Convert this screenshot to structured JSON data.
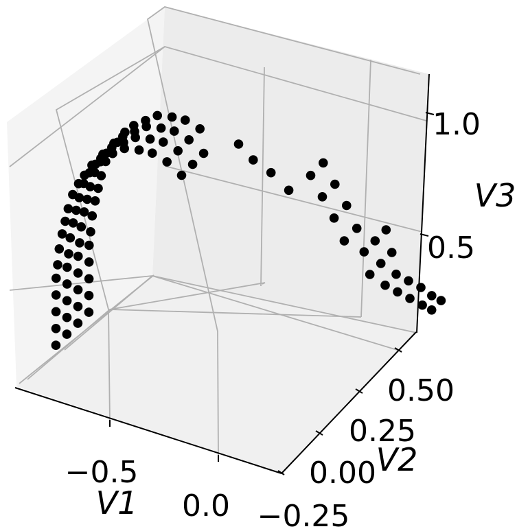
{
  "chart_data": {
    "type": "scatter",
    "xlabel": "V1",
    "ylabel": "V2",
    "zlabel": "V3",
    "x_ticks": [
      "−0.5",
      "0.0"
    ],
    "y_ticks": [
      "−0.25",
      "0.00",
      "0.25",
      "0.50"
    ],
    "z_ticks": [
      "0.5",
      "1.0"
    ],
    "grid": true,
    "marker_color": "#000000",
    "pane_color": "#f2f2f2",
    "grid_color": "#b0b0b0",
    "series": [
      {
        "points": [
          [
            -0.96,
            -0.14,
            0.02
          ],
          [
            -0.96,
            -0.14,
            0.09
          ],
          [
            -0.96,
            -0.14,
            0.16
          ],
          [
            -0.96,
            -0.14,
            0.23
          ],
          [
            -0.96,
            -0.14,
            0.3
          ],
          [
            -0.95,
            -0.14,
            0.36
          ],
          [
            -0.94,
            -0.14,
            0.43
          ],
          [
            -0.92,
            -0.14,
            0.5
          ],
          [
            -0.9,
            -0.14,
            0.56
          ],
          [
            -0.88,
            -0.14,
            0.62
          ],
          [
            -0.85,
            -0.14,
            0.69
          ],
          [
            -0.81,
            -0.14,
            0.75
          ],
          [
            -0.77,
            -0.14,
            0.8
          ],
          [
            -0.72,
            -0.14,
            0.86
          ],
          [
            -0.66,
            -0.14,
            0.91
          ],
          [
            -0.58,
            -0.14,
            0.96
          ],
          [
            -0.5,
            -0.14,
            1.01
          ],
          [
            -0.4,
            -0.14,
            1.04
          ],
          [
            -0.96,
            -0.07,
            0.02
          ],
          [
            -0.96,
            -0.07,
            0.09
          ],
          [
            -0.96,
            -0.07,
            0.16
          ],
          [
            -0.96,
            -0.07,
            0.23
          ],
          [
            -0.96,
            -0.07,
            0.3
          ],
          [
            -0.95,
            -0.07,
            0.36
          ],
          [
            -0.94,
            -0.07,
            0.43
          ],
          [
            -0.92,
            -0.07,
            0.5
          ],
          [
            -0.9,
            -0.07,
            0.56
          ],
          [
            -0.88,
            -0.07,
            0.62
          ],
          [
            -0.85,
            -0.07,
            0.69
          ],
          [
            -0.81,
            -0.07,
            0.75
          ],
          [
            -0.77,
            -0.07,
            0.8
          ],
          [
            -0.72,
            -0.07,
            0.86
          ],
          [
            -0.66,
            -0.07,
            0.91
          ],
          [
            -0.58,
            -0.07,
            0.96
          ],
          [
            -0.5,
            -0.07,
            1.01
          ],
          [
            -0.4,
            -0.07,
            1.04
          ],
          [
            -0.96,
            0.0,
            0.02
          ],
          [
            -0.96,
            0.0,
            0.09
          ],
          [
            -0.96,
            0.0,
            0.16
          ],
          [
            -0.96,
            0.0,
            0.23
          ],
          [
            -0.96,
            0.0,
            0.3
          ],
          [
            -0.95,
            0.0,
            0.36
          ],
          [
            -0.94,
            0.0,
            0.43
          ],
          [
            -0.92,
            0.0,
            0.5
          ],
          [
            -0.9,
            0.0,
            0.56
          ],
          [
            -0.88,
            0.0,
            0.62
          ],
          [
            -0.85,
            0.0,
            0.69
          ],
          [
            -0.81,
            0.0,
            0.75
          ],
          [
            -0.77,
            0.0,
            0.8
          ],
          [
            -0.72,
            0.0,
            0.86
          ],
          [
            -0.66,
            0.0,
            0.91
          ],
          [
            -0.58,
            0.0,
            0.96
          ],
          [
            -0.5,
            0.0,
            1.01
          ],
          [
            -0.4,
            0.0,
            1.04
          ],
          [
            -0.96,
            0.07,
            0.02
          ],
          [
            -0.96,
            0.07,
            0.09
          ],
          [
            -0.96,
            0.07,
            0.16
          ],
          [
            -0.96,
            0.07,
            0.23
          ],
          [
            -0.96,
            0.07,
            0.3
          ],
          [
            -0.95,
            0.07,
            0.36
          ],
          [
            -0.94,
            0.07,
            0.43
          ],
          [
            -0.92,
            0.07,
            0.5
          ],
          [
            -0.9,
            0.07,
            0.56
          ],
          [
            -0.88,
            0.07,
            0.62
          ],
          [
            -0.85,
            0.07,
            0.69
          ],
          [
            -0.81,
            0.07,
            0.75
          ],
          [
            -0.77,
            0.07,
            0.8
          ],
          [
            -0.72,
            0.07,
            0.86
          ],
          [
            -0.66,
            0.07,
            0.91
          ],
          [
            -0.58,
            0.07,
            0.96
          ],
          [
            -0.5,
            0.07,
            1.01
          ],
          [
            -0.4,
            0.07,
            1.04
          ],
          [
            -0.31,
            -0.14,
            1.06
          ],
          [
            -0.31,
            -0.07,
            1.06
          ],
          [
            -0.31,
            0.0,
            1.06
          ],
          [
            -0.31,
            0.07,
            1.06
          ],
          [
            -0.21,
            -0.14,
            1.06
          ],
          [
            -0.21,
            -0.07,
            1.06
          ],
          [
            -0.21,
            0.0,
            1.06
          ],
          [
            -0.21,
            0.07,
            1.06
          ],
          [
            -0.11,
            -0.14,
            1.04
          ],
          [
            -0.11,
            -0.07,
            1.04
          ],
          [
            -0.11,
            0.0,
            1.04
          ],
          [
            0.0,
            0.12,
            1.04
          ],
          [
            0.1,
            0.12,
            1.01
          ],
          [
            0.2,
            0.14,
            0.98
          ],
          [
            0.3,
            0.16,
            0.93
          ],
          [
            0.3,
            0.3,
            0.9
          ],
          [
            0.38,
            0.3,
            0.84
          ],
          [
            0.46,
            0.3,
            0.78
          ],
          [
            0.53,
            0.3,
            0.71
          ],
          [
            0.3,
            0.38,
            0.9
          ],
          [
            0.38,
            0.38,
            0.84
          ],
          [
            0.46,
            0.38,
            0.78
          ],
          [
            0.53,
            0.38,
            0.71
          ],
          [
            0.58,
            0.38,
            0.63
          ],
          [
            0.58,
            0.45,
            0.63
          ],
          [
            0.62,
            0.38,
            0.55
          ],
          [
            0.62,
            0.45,
            0.55
          ],
          [
            0.58,
            0.52,
            0.63
          ],
          [
            0.62,
            0.52,
            0.55
          ],
          [
            0.65,
            0.45,
            0.47
          ],
          [
            0.65,
            0.52,
            0.47
          ],
          [
            0.66,
            0.52,
            0.4
          ],
          [
            0.66,
            0.59,
            0.4
          ],
          [
            0.67,
            0.59,
            0.33
          ],
          [
            0.67,
            0.66,
            0.33
          ],
          [
            0.68,
            0.66,
            0.26
          ],
          [
            0.68,
            0.72,
            0.26
          ],
          [
            0.68,
            0.72,
            0.2
          ],
          [
            0.68,
            0.78,
            0.2
          ]
        ]
      }
    ]
  }
}
